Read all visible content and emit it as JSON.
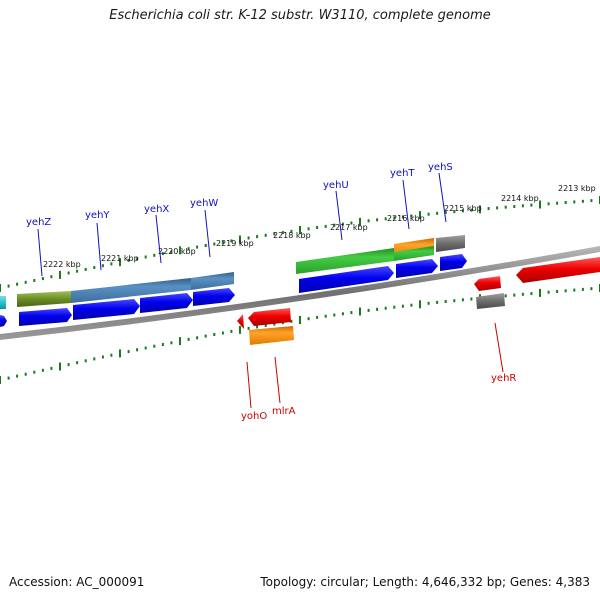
{
  "header": {
    "title": "Escherichia coli str. K-12 substr. W3110, complete genome"
  },
  "footer": {
    "accession": "Accession: AC_000091",
    "stats": "Topology: circular; Length: 4,646,332 bp; Genes: 4,383"
  },
  "ruler": {
    "ticks": [
      {
        "label": "2222 kbp"
      },
      {
        "label": "2221 kbp"
      },
      {
        "label": "2220 kbp"
      },
      {
        "label": "2219 kbp"
      },
      {
        "label": "2218 kbp"
      },
      {
        "label": "2217 kbp"
      },
      {
        "label": "2216 kbp"
      },
      {
        "label": "2215 kbp"
      },
      {
        "label": "2214 kbp"
      },
      {
        "label": "2213 kbp"
      }
    ]
  },
  "genes": {
    "forward": [
      {
        "name": "yehZ"
      },
      {
        "name": "yehY"
      },
      {
        "name": "yehX"
      },
      {
        "name": "yehW"
      },
      {
        "name": "yehU"
      },
      {
        "name": "yehT"
      },
      {
        "name": "yehS"
      }
    ],
    "reverse": [
      {
        "name": "yohO"
      },
      {
        "name": "mlrA"
      },
      {
        "name": "yehR"
      }
    ]
  },
  "colors": {
    "forward_label": "#1010c0",
    "reverse_label": "#cc0000",
    "tick": "#1a7a1a",
    "backbone": "#7a7a7a",
    "cds_blue": "#0000ee",
    "cds_red": "#ee0000",
    "gene_olive": "#6b8e23",
    "gene_steel": "#4f86b8",
    "gene_green": "#33bb33",
    "gene_orange": "#ff8c00",
    "gene_gray": "#707070",
    "gene_cyan": "#00b8c8"
  }
}
